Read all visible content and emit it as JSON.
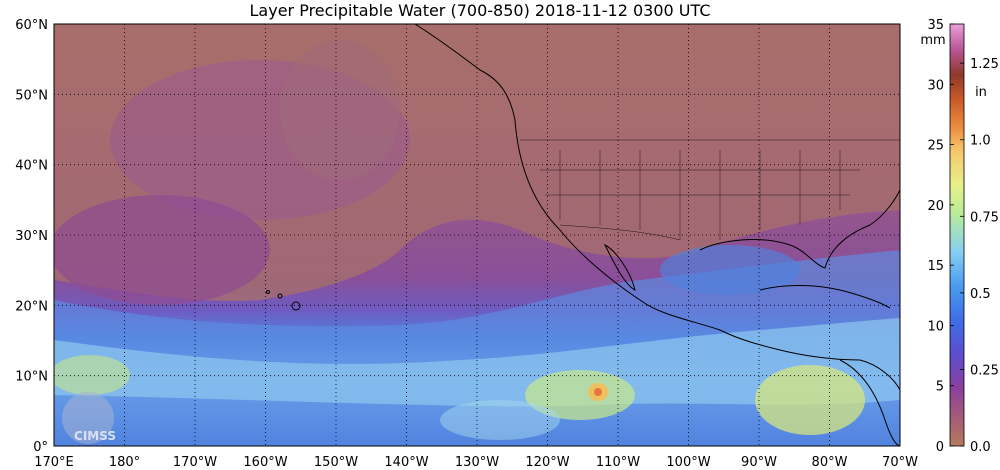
{
  "title": "Layer Precipitable Water (700-850)  2018-11-12 0300 UTC",
  "lat_labels": [
    "60°N",
    "50°N",
    "40°N",
    "30°N",
    "20°N",
    "10°N",
    "0°"
  ],
  "lon_labels": [
    "170°E",
    "180°",
    "170°W",
    "160°W",
    "150°W",
    "140°W",
    "130°W",
    "120°W",
    "110°W",
    "100°W",
    "90°W",
    "80°W",
    "70°W"
  ],
  "colorbar": {
    "mm_unit": "mm",
    "mm_ticks": [
      "35",
      "30",
      "25",
      "20",
      "15",
      "10",
      "5",
      "0"
    ],
    "in_unit": "in",
    "in_ticks": [
      "1.25",
      "1.0",
      "0.75",
      "0.5",
      "0.25",
      "0.0"
    ]
  },
  "logo": "CIMSS",
  "colors": {
    "dry": "#b2735f",
    "dry_purple": "#8e4a8c",
    "moist_purple": "#7a3fa0",
    "blue": "#4a7fe0",
    "light_blue": "#8ec7f0",
    "green_yellow": "#c8e67a",
    "yellow": "#f1d66a",
    "orange": "#e07a3c"
  }
}
